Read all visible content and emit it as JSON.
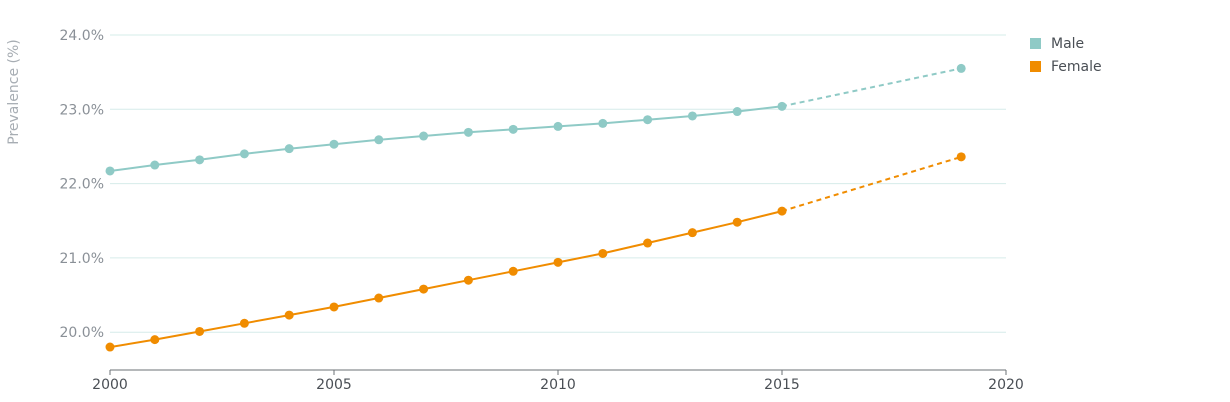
{
  "chart_data": {
    "type": "line",
    "ylabel": "Prevalence (%)",
    "xlim": [
      2000,
      2020
    ],
    "ylim": [
      19.5,
      24.0
    ],
    "x_ticks": [
      2000,
      2005,
      2010,
      2015,
      2020
    ],
    "y_ticks": [
      {
        "value": 20.0,
        "label": "20.0%"
      },
      {
        "value": 21.0,
        "label": "21.0%"
      },
      {
        "value": 22.0,
        "label": "22.0%"
      },
      {
        "value": 23.0,
        "label": "23.0%"
      },
      {
        "value": 24.0,
        "label": "24.0%"
      }
    ],
    "grid": true,
    "legend_position": "top-right",
    "series": [
      {
        "name": "Male",
        "color": "#8fcac6",
        "x": [
          2000,
          2001,
          2002,
          2003,
          2004,
          2005,
          2006,
          2007,
          2008,
          2009,
          2010,
          2011,
          2012,
          2013,
          2014,
          2015
        ],
        "values": [
          22.17,
          22.25,
          22.32,
          22.4,
          22.47,
          22.53,
          22.59,
          22.64,
          22.69,
          22.73,
          22.77,
          22.81,
          22.86,
          22.91,
          22.97,
          23.04
        ],
        "projection": {
          "x": [
            2015,
            2019
          ],
          "values": [
            23.04,
            23.55
          ]
        }
      },
      {
        "name": "Female",
        "color": "#f08c00",
        "x": [
          2000,
          2001,
          2002,
          2003,
          2004,
          2005,
          2006,
          2007,
          2008,
          2009,
          2010,
          2011,
          2012,
          2013,
          2014,
          2015
        ],
        "values": [
          19.8,
          19.9,
          20.01,
          20.12,
          20.23,
          20.34,
          20.46,
          20.58,
          20.7,
          20.82,
          20.94,
          21.06,
          21.2,
          21.34,
          21.48,
          21.63
        ],
        "projection": {
          "x": [
            2015,
            2019
          ],
          "values": [
            21.63,
            22.36
          ]
        }
      }
    ]
  }
}
